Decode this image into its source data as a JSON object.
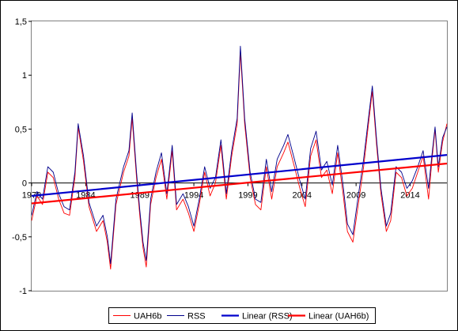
{
  "chart_data": {
    "type": "line",
    "y_axis": {
      "min": -1,
      "max": 1.5,
      "step": 0.5,
      "tick_labels": [
        "-1",
        "-0,5",
        "0",
        "0,5",
        "1",
        "1,5"
      ],
      "gridlines": false
    },
    "x_axis": {
      "min": 1979,
      "max": 2017.4,
      "tick_labels": [
        "1979",
        "1984",
        "1989",
        "1994",
        "1999",
        "2004",
        "2009",
        "2014"
      ],
      "tick_values": [
        1979,
        1984,
        1989,
        1994,
        1999,
        2004,
        2009,
        2014
      ],
      "gridlines": false
    },
    "legend_position": "bottom",
    "series": [
      {
        "name": "UAH6b",
        "color": "#ff0000",
        "style": "thin",
        "points": [
          [
            1979.0,
            -0.35
          ],
          [
            1979.5,
            -0.12
          ],
          [
            1980.0,
            -0.2
          ],
          [
            1980.5,
            0.1
          ],
          [
            1981.0,
            0.05
          ],
          [
            1981.5,
            -0.15
          ],
          [
            1982.0,
            -0.28
          ],
          [
            1982.5,
            -0.3
          ],
          [
            1983.0,
            0.05
          ],
          [
            1983.3,
            0.52
          ],
          [
            1983.8,
            0.2
          ],
          [
            1984.3,
            -0.22
          ],
          [
            1985.0,
            -0.45
          ],
          [
            1985.6,
            -0.35
          ],
          [
            1986.0,
            -0.55
          ],
          [
            1986.3,
            -0.8
          ],
          [
            1986.8,
            -0.2
          ],
          [
            1987.5,
            0.1
          ],
          [
            1988.0,
            0.25
          ],
          [
            1988.3,
            0.6
          ],
          [
            1988.7,
            0.05
          ],
          [
            1989.0,
            -0.3
          ],
          [
            1989.3,
            -0.6
          ],
          [
            1989.6,
            -0.78
          ],
          [
            1990.0,
            -0.2
          ],
          [
            1990.5,
            0.05
          ],
          [
            1991.0,
            0.22
          ],
          [
            1991.5,
            -0.15
          ],
          [
            1992.0,
            0.3
          ],
          [
            1992.4,
            -0.25
          ],
          [
            1993.0,
            -0.15
          ],
          [
            1993.5,
            -0.28
          ],
          [
            1994.0,
            -0.45
          ],
          [
            1994.5,
            -0.2
          ],
          [
            1995.0,
            0.1
          ],
          [
            1995.5,
            -0.12
          ],
          [
            1996.0,
            0.0
          ],
          [
            1996.5,
            0.35
          ],
          [
            1997.0,
            -0.15
          ],
          [
            1997.5,
            0.25
          ],
          [
            1998.0,
            0.55
          ],
          [
            1998.3,
            1.22
          ],
          [
            1998.7,
            0.55
          ],
          [
            1999.2,
            0.05
          ],
          [
            1999.7,
            -0.2
          ],
          [
            2000.2,
            -0.25
          ],
          [
            2000.7,
            0.15
          ],
          [
            2001.2,
            -0.15
          ],
          [
            2001.7,
            0.15
          ],
          [
            2002.3,
            0.28
          ],
          [
            2002.7,
            0.38
          ],
          [
            2003.3,
            0.15
          ],
          [
            2003.8,
            -0.05
          ],
          [
            2004.3,
            -0.22
          ],
          [
            2004.8,
            0.25
          ],
          [
            2005.3,
            0.4
          ],
          [
            2005.8,
            0.05
          ],
          [
            2006.3,
            0.12
          ],
          [
            2006.8,
            -0.1
          ],
          [
            2007.3,
            0.28
          ],
          [
            2007.8,
            -0.1
          ],
          [
            2008.2,
            -0.45
          ],
          [
            2008.7,
            -0.55
          ],
          [
            2009.2,
            -0.2
          ],
          [
            2009.7,
            0.15
          ],
          [
            2010.2,
            0.6
          ],
          [
            2010.5,
            0.85
          ],
          [
            2010.9,
            0.35
          ],
          [
            2011.3,
            -0.1
          ],
          [
            2011.8,
            -0.45
          ],
          [
            2012.2,
            -0.35
          ],
          [
            2012.7,
            0.1
          ],
          [
            2013.2,
            0.05
          ],
          [
            2013.7,
            -0.12
          ],
          [
            2014.2,
            -0.05
          ],
          [
            2014.7,
            0.1
          ],
          [
            2015.2,
            0.25
          ],
          [
            2015.7,
            -0.15
          ],
          [
            2016.0,
            0.2
          ],
          [
            2016.3,
            0.5
          ],
          [
            2016.6,
            0.1
          ],
          [
            2017.0,
            0.38
          ],
          [
            2017.4,
            0.55
          ]
        ]
      },
      {
        "name": "RSS",
        "color": "#00008b",
        "style": "thin",
        "points": [
          [
            1979.0,
            -0.3
          ],
          [
            1979.5,
            -0.08
          ],
          [
            1980.0,
            -0.15
          ],
          [
            1980.5,
            0.15
          ],
          [
            1981.0,
            0.1
          ],
          [
            1981.5,
            -0.1
          ],
          [
            1982.0,
            -0.22
          ],
          [
            1982.5,
            -0.25
          ],
          [
            1983.0,
            0.1
          ],
          [
            1983.3,
            0.55
          ],
          [
            1983.8,
            0.25
          ],
          [
            1984.3,
            -0.18
          ],
          [
            1985.0,
            -0.4
          ],
          [
            1985.6,
            -0.3
          ],
          [
            1986.0,
            -0.5
          ],
          [
            1986.3,
            -0.75
          ],
          [
            1986.8,
            -0.15
          ],
          [
            1987.5,
            0.15
          ],
          [
            1988.0,
            0.3
          ],
          [
            1988.3,
            0.65
          ],
          [
            1988.7,
            0.1
          ],
          [
            1989.0,
            -0.25
          ],
          [
            1989.3,
            -0.55
          ],
          [
            1989.6,
            -0.72
          ],
          [
            1990.0,
            -0.15
          ],
          [
            1990.5,
            0.1
          ],
          [
            1991.0,
            0.28
          ],
          [
            1991.5,
            -0.1
          ],
          [
            1992.0,
            0.35
          ],
          [
            1992.4,
            -0.2
          ],
          [
            1993.0,
            -0.1
          ],
          [
            1993.5,
            -0.22
          ],
          [
            1994.0,
            -0.4
          ],
          [
            1994.5,
            -0.15
          ],
          [
            1995.0,
            0.15
          ],
          [
            1995.5,
            -0.05
          ],
          [
            1996.0,
            0.05
          ],
          [
            1996.5,
            0.4
          ],
          [
            1997.0,
            -0.1
          ],
          [
            1997.5,
            0.3
          ],
          [
            1998.0,
            0.6
          ],
          [
            1998.3,
            1.27
          ],
          [
            1998.7,
            0.6
          ],
          [
            1999.2,
            0.1
          ],
          [
            1999.7,
            -0.15
          ],
          [
            2000.2,
            -0.18
          ],
          [
            2000.7,
            0.22
          ],
          [
            2001.2,
            -0.08
          ],
          [
            2001.7,
            0.22
          ],
          [
            2002.3,
            0.35
          ],
          [
            2002.7,
            0.45
          ],
          [
            2003.3,
            0.22
          ],
          [
            2003.8,
            0.02
          ],
          [
            2004.3,
            -0.15
          ],
          [
            2004.8,
            0.32
          ],
          [
            2005.3,
            0.48
          ],
          [
            2005.8,
            0.12
          ],
          [
            2006.3,
            0.2
          ],
          [
            2006.8,
            -0.02
          ],
          [
            2007.3,
            0.35
          ],
          [
            2007.8,
            -0.02
          ],
          [
            2008.2,
            -0.38
          ],
          [
            2008.7,
            -0.48
          ],
          [
            2009.2,
            -0.12
          ],
          [
            2009.7,
            0.22
          ],
          [
            2010.2,
            0.65
          ],
          [
            2010.5,
            0.9
          ],
          [
            2010.9,
            0.4
          ],
          [
            2011.3,
            -0.05
          ],
          [
            2011.8,
            -0.4
          ],
          [
            2012.2,
            -0.28
          ],
          [
            2012.7,
            0.15
          ],
          [
            2013.2,
            0.1
          ],
          [
            2013.7,
            -0.05
          ],
          [
            2014.2,
            0.02
          ],
          [
            2014.7,
            0.15
          ],
          [
            2015.2,
            0.3
          ],
          [
            2015.7,
            -0.05
          ],
          [
            2016.0,
            0.25
          ],
          [
            2016.3,
            0.52
          ],
          [
            2016.6,
            0.15
          ],
          [
            2017.0,
            0.42
          ],
          [
            2017.4,
            0.52
          ]
        ]
      },
      {
        "name": "Linear (RSS)",
        "color": "#0000cc",
        "style": "thick",
        "points": [
          [
            1979.0,
            -0.12
          ],
          [
            2017.4,
            0.26
          ]
        ]
      },
      {
        "name": "Linear (UAH6b)",
        "color": "#ff0000",
        "style": "thick",
        "points": [
          [
            1979.0,
            -0.19
          ],
          [
            2017.4,
            0.18
          ]
        ]
      }
    ]
  }
}
